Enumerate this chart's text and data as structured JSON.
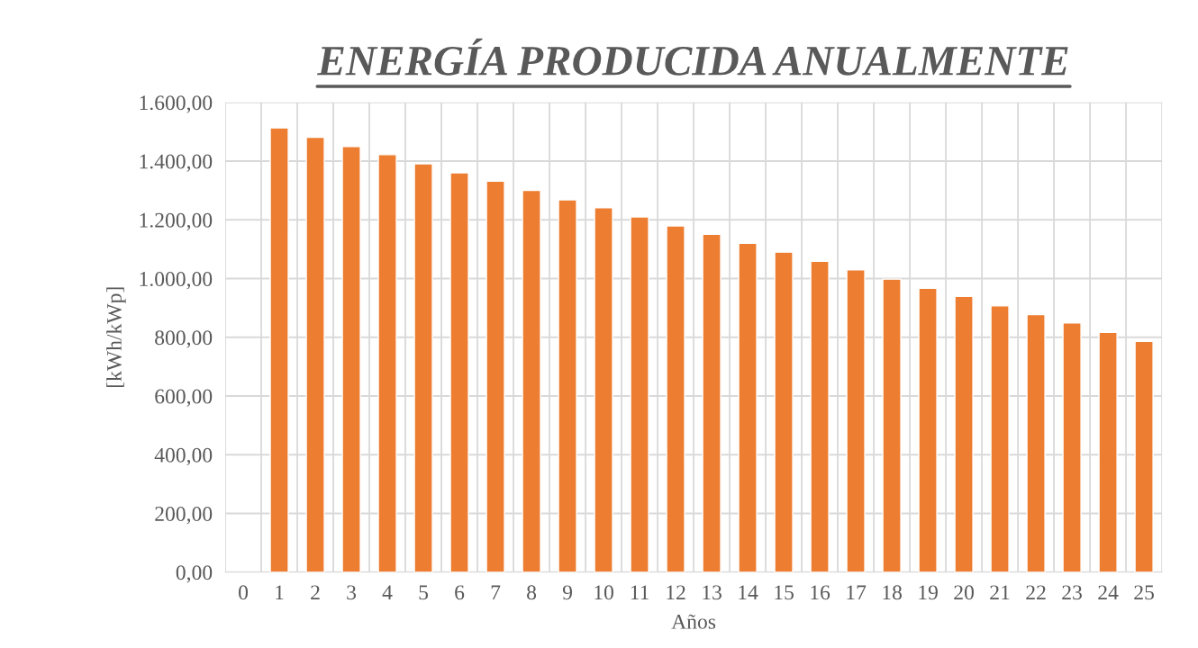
{
  "chart_data": {
    "type": "bar",
    "title": "ENERGÍA PRODUCIDA ANUALMENTE",
    "xlabel": "Años",
    "ylabel": "[kWh/kWp]",
    "categories": [
      "0",
      "1",
      "2",
      "3",
      "4",
      "5",
      "6",
      "7",
      "8",
      "9",
      "10",
      "11",
      "12",
      "13",
      "14",
      "15",
      "16",
      "17",
      "18",
      "19",
      "20",
      "21",
      "22",
      "23",
      "24",
      "25"
    ],
    "values": [
      null,
      1513,
      1481,
      1450,
      1422,
      1391,
      1360,
      1332,
      1300,
      1268,
      1241,
      1210,
      1179,
      1151,
      1120,
      1090,
      1059,
      1030,
      998,
      967,
      939,
      907,
      877,
      849,
      817,
      786
    ],
    "color": "#ed7d31",
    "ylim": [
      0,
      1600
    ],
    "yticks": [
      {
        "value": 0,
        "label": "0,00"
      },
      {
        "value": 200,
        "label": "200,00"
      },
      {
        "value": 400,
        "label": "400,00"
      },
      {
        "value": 600,
        "label": "600,00"
      },
      {
        "value": 800,
        "label": "800,00"
      },
      {
        "value": 1000,
        "label": "1.000,00"
      },
      {
        "value": 1200,
        "label": "1.200,00"
      },
      {
        "value": 1400,
        "label": "1.400,00"
      },
      {
        "value": 1600,
        "label": "1.600,00"
      }
    ],
    "grid": true
  }
}
